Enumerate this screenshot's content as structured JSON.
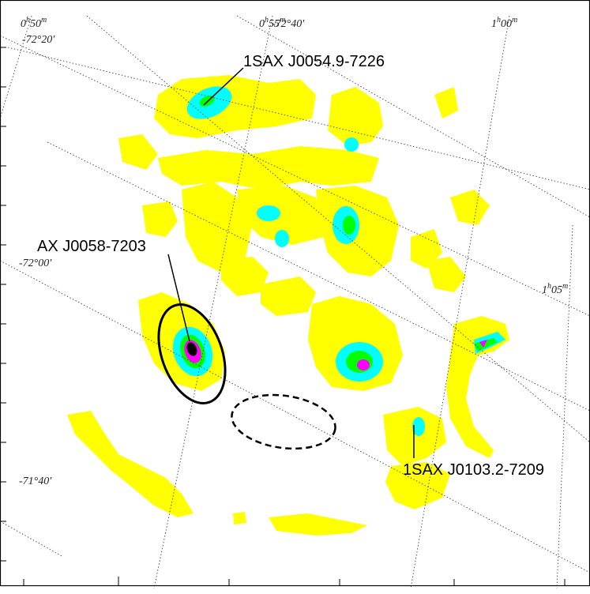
{
  "ra_labels": [
    {
      "h": "0",
      "m": "50"
    },
    {
      "h": "0",
      "m": "55"
    },
    {
      "h": "1",
      "m": "00"
    },
    {
      "h": "1",
      "m": "05"
    }
  ],
  "dec_labels": [
    "-72°20′",
    "-72°40′",
    "-72°00′",
    "-71°40′"
  ],
  "sources": [
    {
      "name": "1SAX J0054.9-7226"
    },
    {
      "name": "AX J0058-7203"
    },
    {
      "name": "1SAX J0103.2-7209"
    }
  ],
  "colors": {
    "background": "#ffffff",
    "level1": "#ffff00",
    "level2": "#00ffff",
    "level3": "#00ff00",
    "level4": "#ff00ff",
    "peak": "#000000"
  }
}
